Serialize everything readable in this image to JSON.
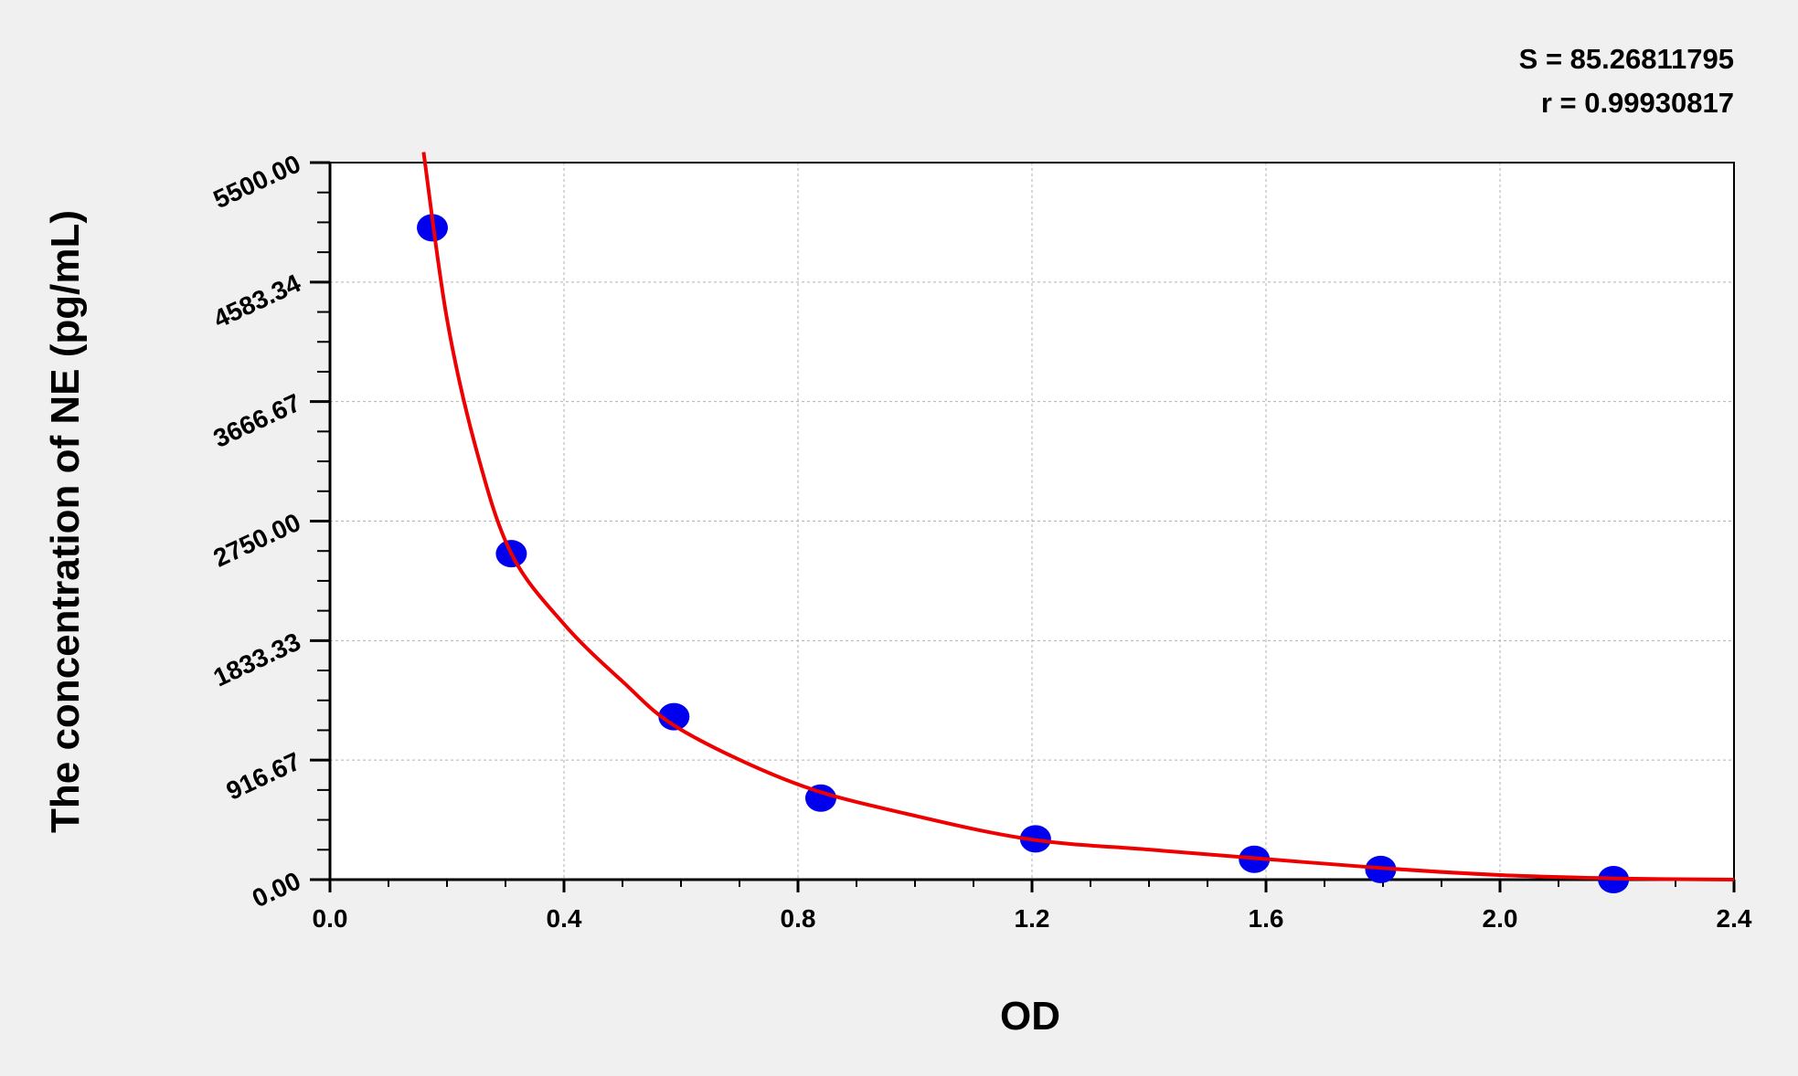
{
  "chart_data": {
    "type": "scatter",
    "title": "",
    "xlabel": "OD",
    "ylabel": "The concentration of NE (pg/mL)",
    "xlim": [
      0.0,
      2.4
    ],
    "ylim": [
      0.0,
      5500.0
    ],
    "x_ticks": [
      "0.0",
      "0.4",
      "0.8",
      "1.2",
      "1.6",
      "2.0",
      "2.4"
    ],
    "y_ticks": [
      "0.00",
      "916.67",
      "1833.33",
      "2750.00",
      "3666.67",
      "4583.34",
      "5500.00"
    ],
    "grid": true,
    "annotations": [
      "S = 85.26811795",
      "r = 0.99930817"
    ],
    "colors": {
      "points": "#0000ee",
      "fit_curve": "#ee0000",
      "background": "#f0f0f0",
      "plot_background": "#ffffff"
    },
    "points": [
      {
        "x": 0.175,
        "y": 5000
      },
      {
        "x": 0.31,
        "y": 2500
      },
      {
        "x": 0.588,
        "y": 1250
      },
      {
        "x": 0.839,
        "y": 625
      },
      {
        "x": 1.206,
        "y": 312.5
      },
      {
        "x": 1.58,
        "y": 156
      },
      {
        "x": 1.796,
        "y": 78
      },
      {
        "x": 2.194,
        "y": 0
      }
    ],
    "fit_curve": [
      [
        0.16,
        5580
      ],
      [
        0.2,
        4300
      ],
      [
        0.25,
        3300
      ],
      [
        0.31,
        2500
      ],
      [
        0.4,
        1960
      ],
      [
        0.5,
        1520
      ],
      [
        0.6,
        1150
      ],
      [
        0.8,
        730
      ],
      [
        1.0,
        490
      ],
      [
        1.2,
        307
      ],
      [
        1.4,
        230
      ],
      [
        1.6,
        158
      ],
      [
        1.8,
        88
      ],
      [
        2.0,
        35
      ],
      [
        2.2,
        9
      ],
      [
        2.4,
        0
      ]
    ]
  }
}
